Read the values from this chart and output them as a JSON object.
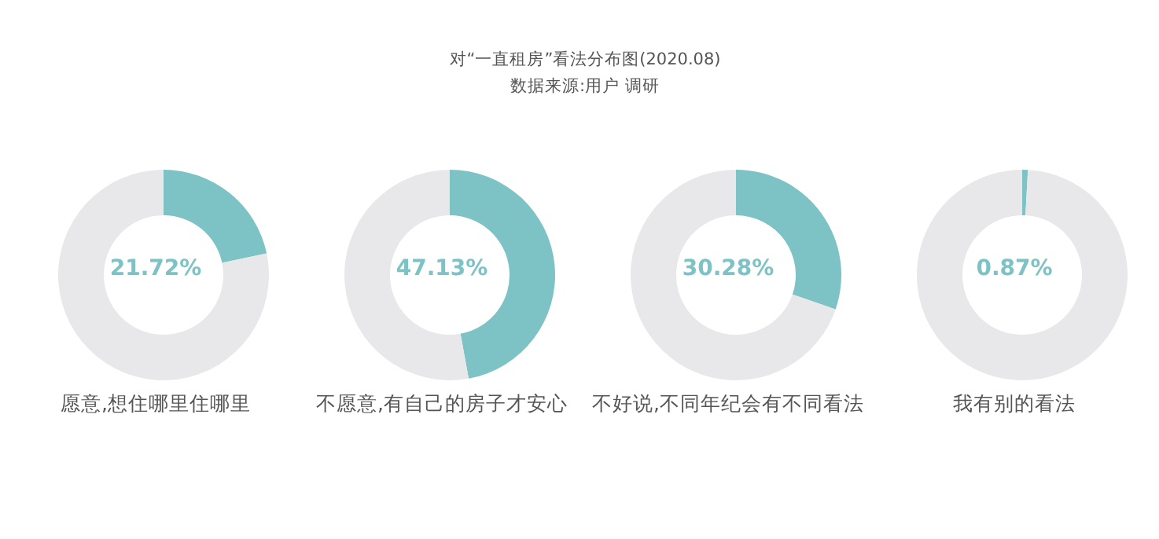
{
  "chart_data": [
    {
      "type": "donut",
      "title": "对“一直租房”看法分布图(2020.08)",
      "annotations": [
        "数据来源:用户 调研",
        "21.72%"
      ],
      "xlabel": "愿意,想住哪里住哪里",
      "categories": [
        null,
        null
      ],
      "values": [
        21.72,
        78.28
      ],
      "colors": [
        "#7dc3c5",
        "#e8e8ea"
      ]
    },
    {
      "type": "donut",
      "annotations": [
        "47.13%"
      ],
      "xlabel": "不愿意,有自己的房子才安心",
      "categories": [
        null,
        null
      ],
      "values": [
        47.13,
        52.87
      ],
      "colors": [
        "#7dc3c5",
        "#e8e8ea"
      ]
    },
    {
      "type": "donut",
      "annotations": [
        "30.28%"
      ],
      "xlabel": "不好说,不同年纪会有不同看法",
      "categories": [
        null,
        null
      ],
      "values": [
        30.28,
        69.72
      ],
      "colors": [
        "#7dc3c5",
        "#e8e8ea"
      ]
    },
    {
      "type": "donut",
      "annotations": [
        "0.87%"
      ],
      "xlabel": "我有别的看法",
      "categories": [
        null,
        null
      ],
      "values": [
        0.87,
        99.13
      ],
      "colors": [
        "#7dc3c5",
        "#e8e8ea"
      ]
    }
  ]
}
